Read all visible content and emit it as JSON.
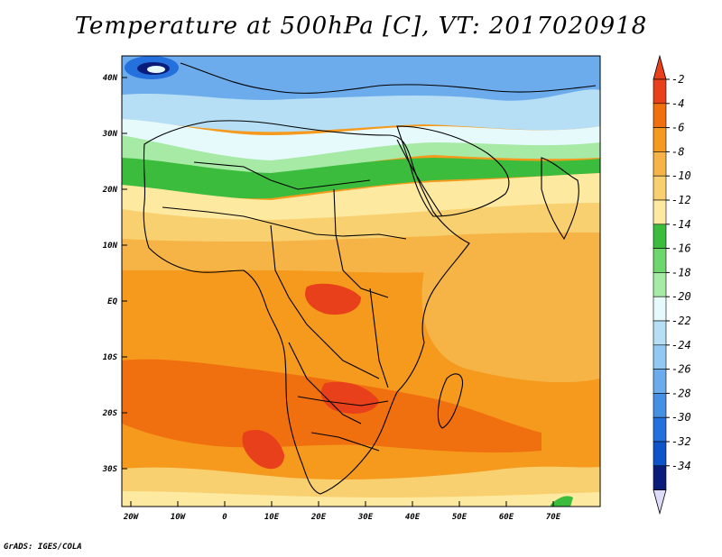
{
  "title": "Temperature at 500hPa [C], VT: 2017020918",
  "credit": "GrADS: IGES/COLA",
  "lat_labels": [
    "40N",
    "30N",
    "20N",
    "10N",
    "EQ",
    "10S",
    "20S",
    "30S"
  ],
  "lon_labels": [
    "20W",
    "10W",
    "0",
    "10E",
    "20E",
    "30E",
    "40E",
    "50E",
    "60E",
    "70E"
  ],
  "colorbar": {
    "labels": [
      "-2",
      "-4",
      "-6",
      "-8",
      "-10",
      "-12",
      "-14",
      "-16",
      "-18",
      "-20",
      "-22",
      "-24",
      "-26",
      "-28",
      "-30",
      "-32",
      "-34"
    ],
    "colors": [
      "#e8401a",
      "#f07010",
      "#f59a1c",
      "#f6b446",
      "#f8d070",
      "#fde9a0",
      "#3cbc3c",
      "#6dd66d",
      "#a6eaa6",
      "#e6fafc",
      "#b6def4",
      "#92c8f2",
      "#6cacec",
      "#4690e4",
      "#2470dc",
      "#0c54c8",
      "#0a1c7a"
    ],
    "top_arrow_color": "#e8401a",
    "bottom_arrow_color": "#dcdcf8"
  },
  "map_colors": {
    "warm": "#f07010",
    "orange": "#f59a1c",
    "lightorange": "#f6b446",
    "yellow": "#f8d070",
    "paleyellow": "#fde9a0",
    "green": "#3cbc3c",
    "midgreen": "#6dd66d",
    "lightgreen": "#a6eaa6",
    "cyan": "#e6fafc",
    "lightblue": "#b6def4",
    "blue": "#6cacec",
    "deepblue": "#2470dc",
    "darkest": "#0a1c7a",
    "hot": "#e8401a"
  }
}
